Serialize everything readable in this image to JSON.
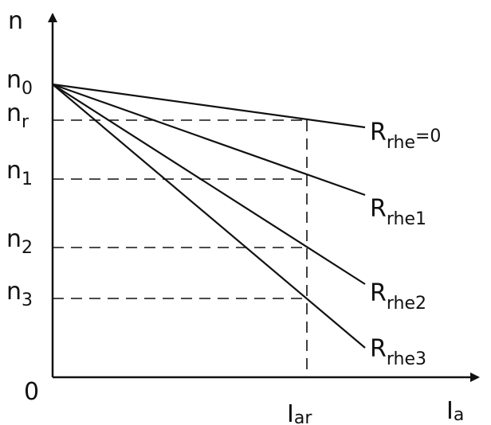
{
  "diagram": {
    "axes": {
      "y_symbol": "n",
      "origin_label": "0",
      "x_symbol": "I",
      "x_symbol_sub": "a"
    },
    "y_levels": [
      {
        "id": "n0",
        "base": "n",
        "sub": "0"
      },
      {
        "id": "nr",
        "base": "n",
        "sub": "r"
      },
      {
        "id": "n1",
        "base": "n",
        "sub": "1"
      },
      {
        "id": "n2",
        "base": "n",
        "sub": "2"
      },
      {
        "id": "n3",
        "base": "n",
        "sub": "3"
      }
    ],
    "x_marker": {
      "base": "I",
      "sub": "ar"
    },
    "curves": [
      {
        "id": "r0",
        "base": "R",
        "sub": "rhe",
        "suffix": "=0"
      },
      {
        "id": "r1",
        "base": "R",
        "sub": "rhe1",
        "suffix": ""
      },
      {
        "id": "r2",
        "base": "R",
        "sub": "rhe2",
        "suffix": ""
      },
      {
        "id": "r3",
        "base": "R",
        "sub": "rhe3",
        "suffix": ""
      }
    ]
  },
  "colors": {
    "ink": "#111111",
    "background": "#ffffff"
  }
}
